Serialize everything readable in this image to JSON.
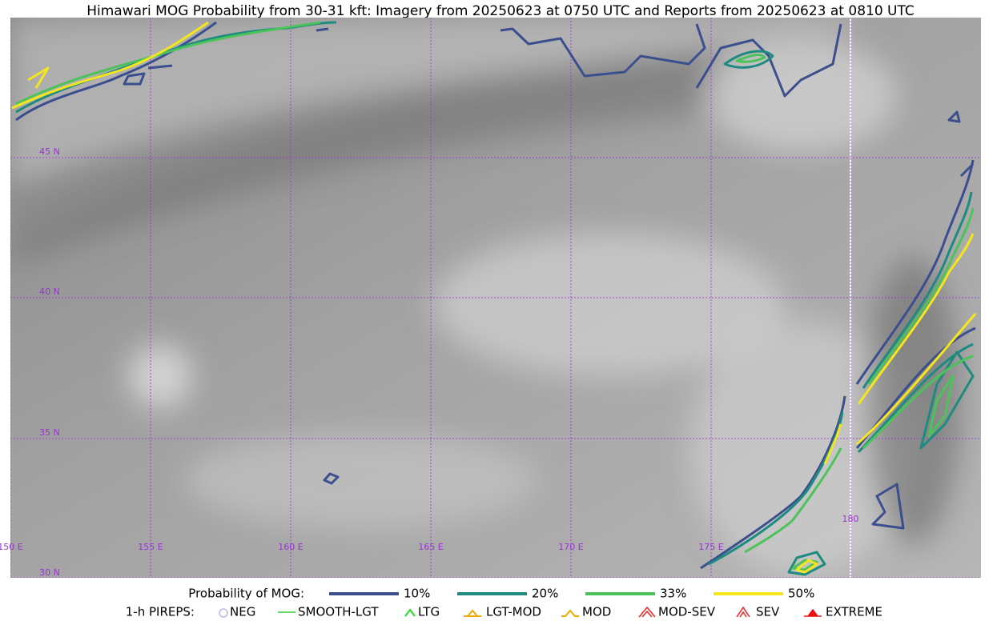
{
  "title": "Himawari MOG Probability from 30-31 kft: Imagery from 20250623 at 0750 UTC and Reports from 20250623 at 0810 UTC",
  "map": {
    "lat_labels": [
      "45 N",
      "40 N",
      "35 N",
      "30 N"
    ],
    "lon_labels": [
      "150 E",
      "155 E",
      "160 E",
      "165 E",
      "170 E",
      "175 E",
      "180"
    ]
  },
  "legend": {
    "probability": {
      "label": "Probability of MOG:",
      "items": [
        {
          "label": "10%",
          "color": "#3b4f8e"
        },
        {
          "label": "20%",
          "color": "#1f8a80"
        },
        {
          "label": "33%",
          "color": "#4cc35a"
        },
        {
          "label": "50%",
          "color": "#f5e51f"
        }
      ]
    },
    "pireps": {
      "label": "1-h PIREPS:",
      "items": [
        {
          "label": "NEG",
          "color": "#b8b8f0"
        },
        {
          "label": "SMOOTH-LGT",
          "color": "#33cc33"
        },
        {
          "label": "LTG",
          "color": "#22dd22"
        },
        {
          "label": "LGT-MOD",
          "color": "#f0a800"
        },
        {
          "label": "MOD",
          "color": "#f0a800"
        },
        {
          "label": "MOD-SEV",
          "color": "#ee2222"
        },
        {
          "label": "SEV",
          "color": "#ee2222"
        },
        {
          "label": "EXTREME",
          "color": "#ee1111"
        }
      ]
    }
  }
}
